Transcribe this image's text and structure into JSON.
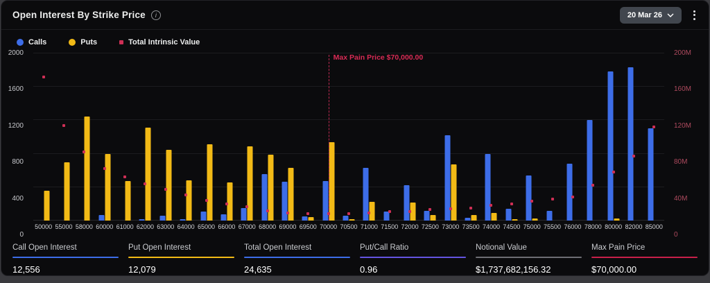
{
  "header": {
    "title": "Open Interest By Strike Price",
    "info_glyph": "i",
    "date_selector_label": "20 Mar 26"
  },
  "legend": {
    "items": [
      {
        "label": "Calls",
        "color": "#3D6DE8",
        "shape": "circle"
      },
      {
        "label": "Puts",
        "color": "#F2BA16",
        "shape": "circle"
      },
      {
        "label": "Total Intrinsic Value",
        "color": "#CE2F55",
        "shape": "square"
      }
    ]
  },
  "chart_data": {
    "type": "bar",
    "title": "Open Interest By Strike Price",
    "categories": [
      "50000",
      "55000",
      "58000",
      "60000",
      "61000",
      "62000",
      "63000",
      "64000",
      "65000",
      "66000",
      "67000",
      "68000",
      "69000",
      "69500",
      "70000",
      "70500",
      "71000",
      "71500",
      "72000",
      "72500",
      "73000",
      "73500",
      "74000",
      "74500",
      "75000",
      "75500",
      "76000",
      "78000",
      "80000",
      "82000",
      "85000"
    ],
    "series": [
      {
        "name": "Calls",
        "type": "bar",
        "axis": "left",
        "color": "#3D6DE8",
        "values": [
          0,
          0,
          0,
          65,
          0,
          20,
          60,
          15,
          105,
          75,
          150,
          555,
          465,
          50,
          470,
          60,
          630,
          110,
          420,
          115,
          1020,
          30,
          795,
          145,
          540,
          115,
          680,
          1205,
          1785,
          1835,
          1105
        ]
      },
      {
        "name": "Puts",
        "type": "bar",
        "axis": "left",
        "color": "#F2BA16",
        "values": [
          355,
          700,
          1245,
          795,
          470,
          1110,
          850,
          485,
          915,
          455,
          885,
          785,
          630,
          45,
          940,
          15,
          225,
          0,
          215,
          70,
          670,
          65,
          95,
          15,
          25,
          0,
          0,
          0,
          25,
          0,
          0
        ]
      },
      {
        "name": "Total Intrinsic Value",
        "type": "scatter",
        "axis": "right",
        "color": "#CE2F55",
        "values_millions": [
          172,
          114,
          82,
          62,
          52,
          44,
          37,
          31,
          24,
          20,
          17,
          12,
          9,
          8,
          8,
          8,
          9,
          11,
          11,
          13,
          14,
          15,
          18,
          20,
          23,
          26,
          28,
          42,
          58,
          77,
          112
        ]
      }
    ],
    "left_axis": {
      "ticks": [
        "0",
        "400",
        "800",
        "1200",
        "1600",
        "2000"
      ],
      "max": 2000,
      "text_color": "#c6c7cb"
    },
    "right_axis": {
      "ticks": [
        "0",
        "40M",
        "80M",
        "120M",
        "160M",
        "200M"
      ],
      "max_millions": 200,
      "text_color": "#AE4A5E"
    },
    "grid": "horizontal",
    "legend_position": "top-left",
    "annotation": {
      "text": "Max Pain Price $70,000.00",
      "category": "70000",
      "category_index": 14,
      "color": "#D92B55"
    }
  },
  "footer": {
    "stats": [
      {
        "label": "Call Open Interest",
        "value": "12,556",
        "underline_color": "#3D6DE8"
      },
      {
        "label": "Put Open Interest",
        "value": "12,079",
        "underline_color": "#F2BA16"
      },
      {
        "label": "Total Open Interest",
        "value": "24,635",
        "underline_color": "#3D6DE8"
      },
      {
        "label": "Put/Call Ratio",
        "value": "0.96",
        "underline_color": "#6454E0"
      },
      {
        "label": "Notional Value",
        "value": "$1,737,682,156.32",
        "underline_color": "#6E6E74"
      },
      {
        "label": "Max Pain Price",
        "value": "$70,000.00",
        "underline_color": "#C9204A"
      }
    ]
  }
}
